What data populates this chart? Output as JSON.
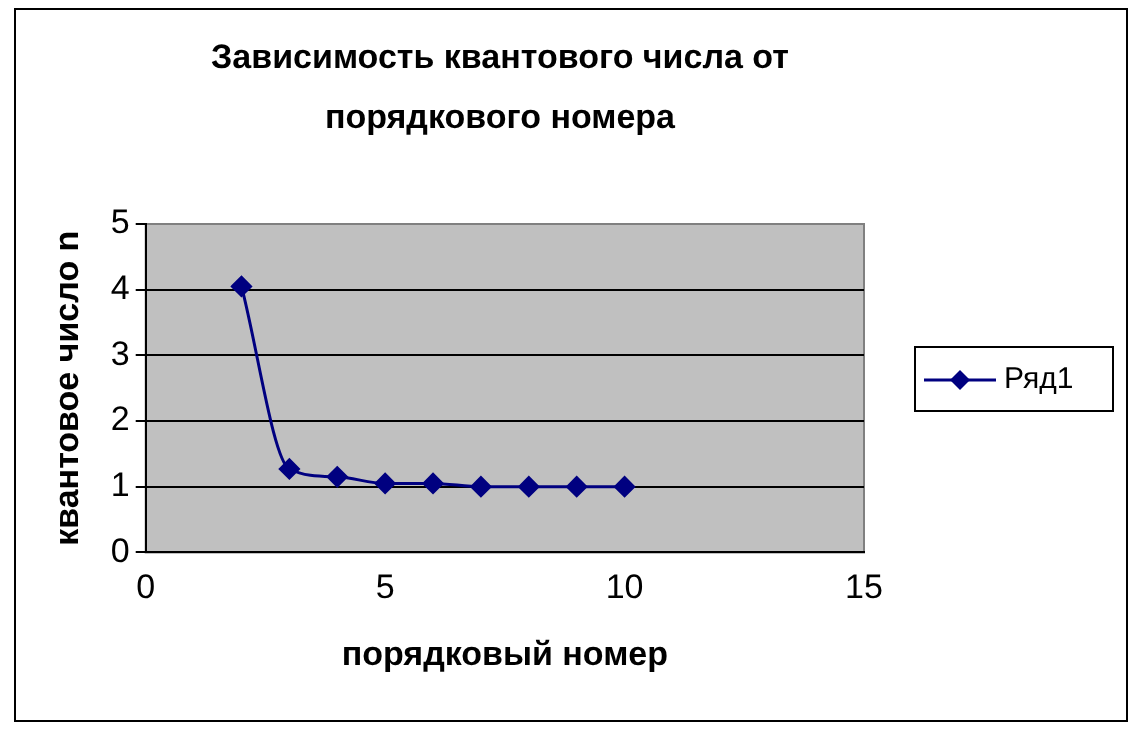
{
  "chart_data": {
    "type": "line",
    "title": "Зависимость квантового числа от порядкового номера",
    "xlabel": "порядковый номер",
    "ylabel": "квантовое число n",
    "x": [
      2,
      3,
      4,
      5,
      6,
      7,
      8,
      9,
      10
    ],
    "series": [
      {
        "name": "Ряд1",
        "color": "#000080",
        "values": [
          4.05,
          1.27,
          1.15,
          1.05,
          1.05,
          1.0,
          1.0,
          1.0,
          1.0
        ]
      }
    ],
    "xlim": [
      0,
      15
    ],
    "xticks": [
      0,
      5,
      10,
      15
    ],
    "ylim": [
      0,
      5
    ],
    "yticks": [
      0,
      1,
      2,
      3,
      4,
      5
    ],
    "grid": "y",
    "legend": "right",
    "marker": "diamond",
    "line_style": "solid"
  }
}
